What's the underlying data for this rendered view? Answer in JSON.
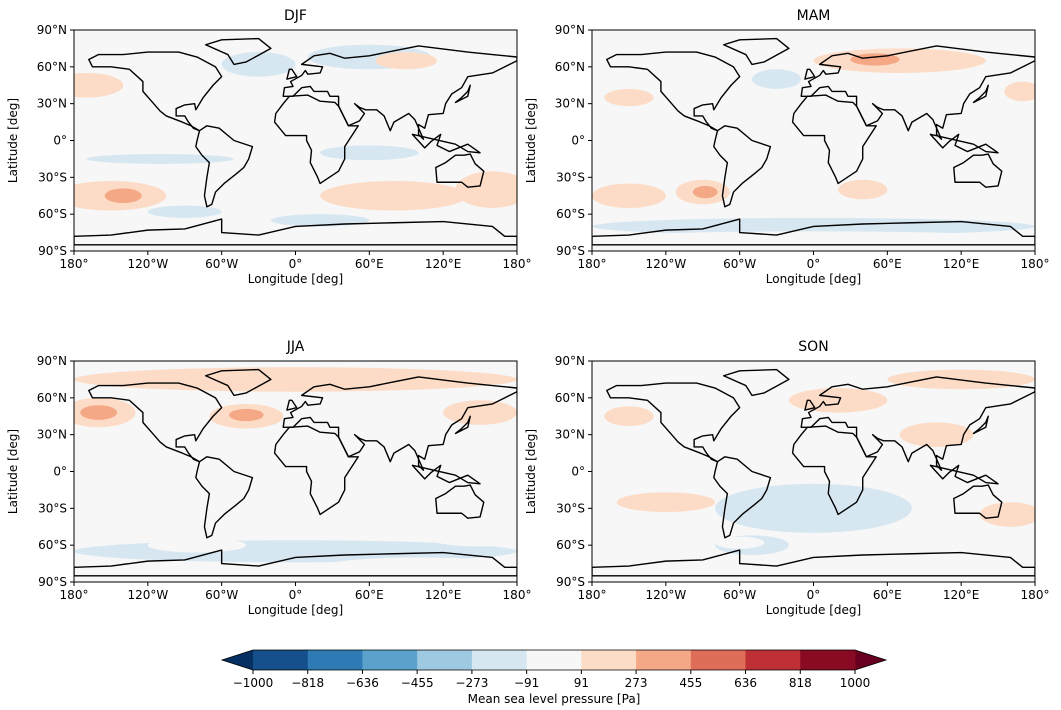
{
  "chart_data": {
    "type": "heatmap",
    "panels": [
      {
        "title": "DJF"
      },
      {
        "title": "MAM"
      },
      {
        "title": "JJA"
      },
      {
        "title": "SON"
      }
    ],
    "xlabel": "Longitude [deg]",
    "ylabel": "Latitude [deg]",
    "xlim": [
      -180,
      180
    ],
    "ylim": [
      -90,
      90
    ],
    "x_ticks": [
      -180,
      -120,
      -60,
      0,
      60,
      120,
      180
    ],
    "x_tick_labels": [
      "180°",
      "120°W",
      "60°W",
      "0°",
      "60°E",
      "120°E",
      "180°"
    ],
    "y_ticks": [
      90,
      60,
      30,
      0,
      -30,
      -60,
      -90
    ],
    "y_tick_labels": [
      "90°N",
      "60°N",
      "30°N",
      "0°",
      "30°S",
      "60°S",
      "90°S"
    ],
    "colorbar": {
      "label": "Mean sea level pressure [Pa]",
      "levels": [
        -1000,
        -818,
        -636,
        -455,
        -273,
        -91,
        91,
        273,
        455,
        636,
        818,
        1000
      ],
      "tick_labels": [
        "−1000",
        "−818",
        "−636",
        "−455",
        "−273",
        "−91",
        "91",
        "273",
        "455",
        "636",
        "818",
        "1000"
      ],
      "colors": [
        "#15508d",
        "#2f79b5",
        "#5aa2cc",
        "#9ecae1",
        "#d6e7f1",
        "#f7f7f7",
        "#fcdcc7",
        "#f5a886",
        "#de6e58",
        "#bf2f36",
        "#880a23"
      ],
      "under_color": "#053061",
      "over_color": "#67001f",
      "extend": "both",
      "colormap": "RdBu_r"
    }
  }
}
